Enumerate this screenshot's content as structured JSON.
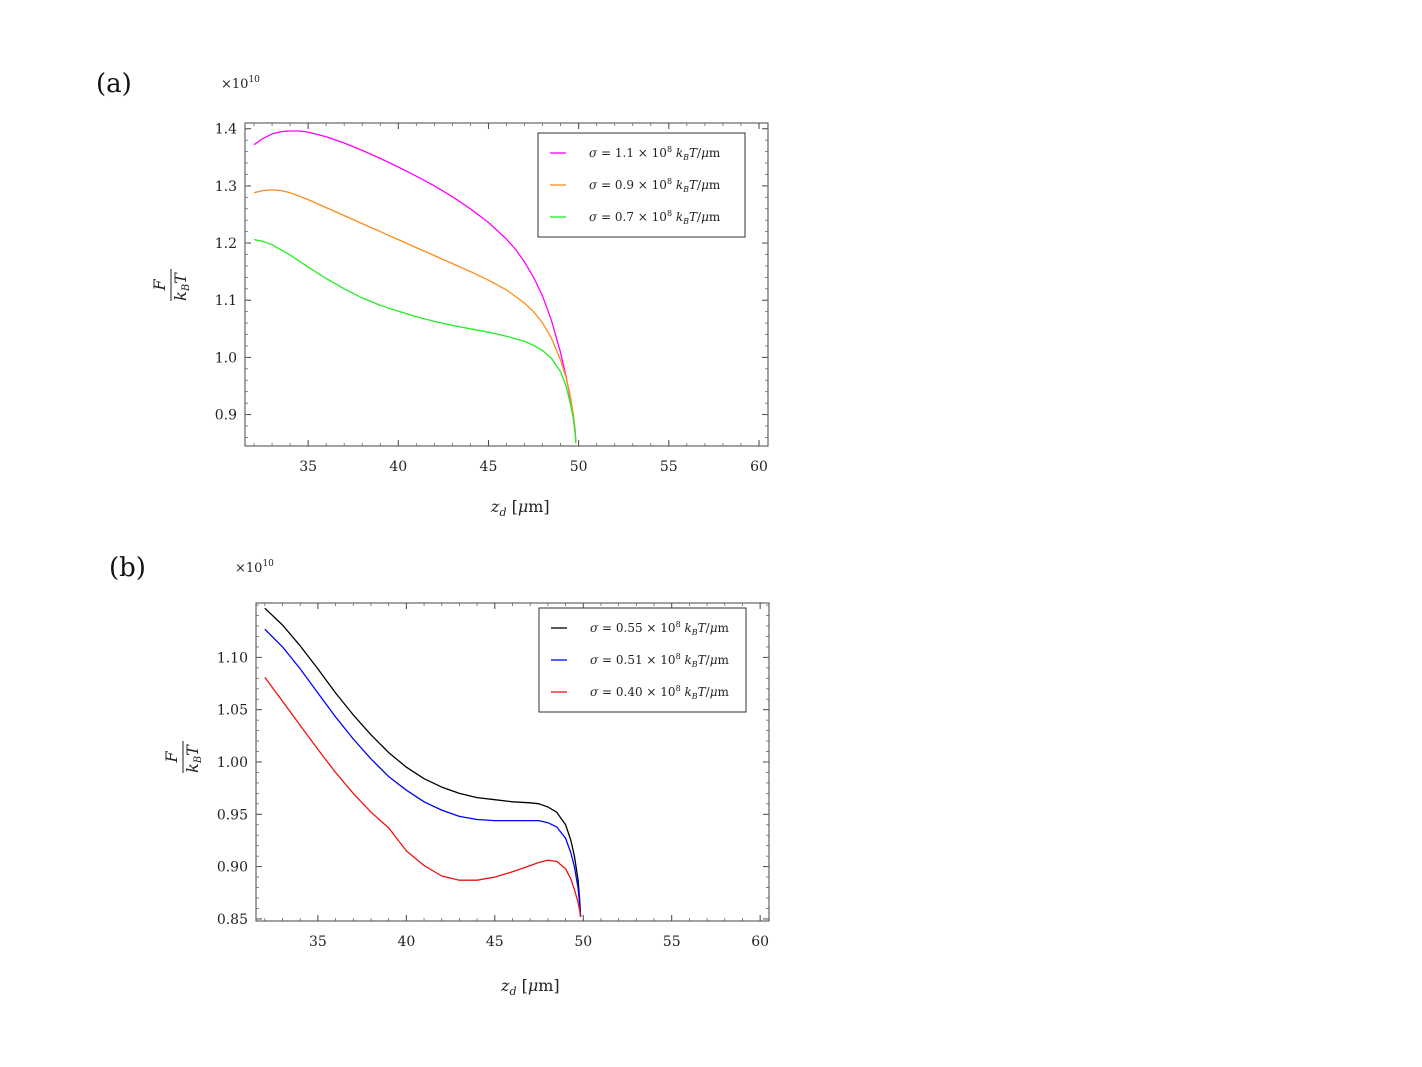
{
  "chart_data": [
    {
      "type": "line",
      "panel_label": "(a)",
      "multiplier": "×10",
      "multiplier_exp": "10",
      "xlabel": "z_d [μm]",
      "ylabel": "F / k_B T",
      "xlim": [
        31.5,
        60.5
      ],
      "ylim": [
        0.845,
        1.41
      ],
      "xticks": [
        "35",
        "40",
        "45",
        "50",
        "55",
        "60"
      ],
      "yticks": [
        "0.9",
        "1.0",
        "1.1",
        "1.2",
        "1.3",
        "1.4"
      ],
      "xtick_values": [
        35,
        40,
        45,
        50,
        55,
        60
      ],
      "ytick_values": [
        0.9,
        1.0,
        1.1,
        1.2,
        1.3,
        1.4
      ],
      "legend_position": "top-right",
      "series": [
        {
          "name": "σ = 1.1 × 10^8 k_B T/μm",
          "color": "#ff00ff",
          "x": [
            32.0,
            32.5,
            33.0,
            33.5,
            34.0,
            34.5,
            35.0,
            36.0,
            37.0,
            38.0,
            39.0,
            40.0,
            41.0,
            42.0,
            43.0,
            44.0,
            45.0,
            46.0,
            46.5,
            47.0,
            47.5,
            48.0,
            48.5,
            49.0,
            49.3,
            49.5,
            49.7,
            49.8,
            49.85
          ],
          "y": [
            1.372,
            1.383,
            1.391,
            1.395,
            1.396,
            1.396,
            1.394,
            1.386,
            1.375,
            1.362,
            1.348,
            1.333,
            1.317,
            1.3,
            1.281,
            1.26,
            1.236,
            1.207,
            1.189,
            1.167,
            1.14,
            1.107,
            1.064,
            1.008,
            0.967,
            0.935,
            0.895,
            0.87,
            0.85
          ]
        },
        {
          "name": "σ = 0.9 × 10^8 k_B T/μm",
          "color": "#ff8c1a",
          "x": [
            32.0,
            32.5,
            33.0,
            33.5,
            34.0,
            35.0,
            36.0,
            37.0,
            38.0,
            39.0,
            40.0,
            41.0,
            42.0,
            43.0,
            44.0,
            45.0,
            46.0,
            47.0,
            47.5,
            48.0,
            48.5,
            49.0,
            49.3,
            49.5,
            49.7,
            49.8,
            49.85
          ],
          "y": [
            1.288,
            1.292,
            1.293,
            1.292,
            1.288,
            1.276,
            1.262,
            1.248,
            1.234,
            1.22,
            1.206,
            1.192,
            1.178,
            1.164,
            1.15,
            1.135,
            1.118,
            1.095,
            1.08,
            1.06,
            1.033,
            0.995,
            0.965,
            0.938,
            0.902,
            0.876,
            0.85
          ]
        },
        {
          "name": "σ = 0.7 × 10^8 k_B T/μm",
          "color": "#22ee22",
          "x": [
            32.0,
            32.5,
            33.0,
            34.0,
            35.0,
            36.0,
            37.0,
            38.0,
            39.0,
            40.0,
            41.0,
            42.0,
            43.0,
            44.0,
            45.0,
            46.0,
            47.0,
            47.5,
            48.0,
            48.5,
            49.0,
            49.3,
            49.5,
            49.7,
            49.8,
            49.85
          ],
          "y": [
            1.206,
            1.203,
            1.197,
            1.179,
            1.158,
            1.138,
            1.12,
            1.104,
            1.091,
            1.081,
            1.071,
            1.063,
            1.056,
            1.05,
            1.044,
            1.037,
            1.028,
            1.021,
            1.012,
            0.998,
            0.975,
            0.95,
            0.925,
            0.895,
            0.872,
            0.85
          ]
        }
      ]
    },
    {
      "type": "line",
      "panel_label": "(b)",
      "multiplier": "×10",
      "multiplier_exp": "10",
      "xlabel": "z_d [μm]",
      "ylabel": "F / k_B T",
      "xlim": [
        31.5,
        60.5
      ],
      "ylim": [
        0.848,
        1.152
      ],
      "xticks": [
        "35",
        "40",
        "45",
        "50",
        "55",
        "60"
      ],
      "yticks": [
        "0.85",
        "0.90",
        "0.95",
        "1.00",
        "1.05",
        "1.10"
      ],
      "xtick_values": [
        35,
        40,
        45,
        50,
        55,
        60
      ],
      "ytick_values": [
        0.85,
        0.9,
        0.95,
        1.0,
        1.05,
        1.1
      ],
      "legend_position": "top-right",
      "series": [
        {
          "name": "σ = 0.55 × 10^8 k_B T/μm",
          "color": "#000000",
          "x": [
            32.0,
            33.0,
            34.0,
            35.0,
            36.0,
            37.0,
            38.0,
            39.0,
            40.0,
            41.0,
            42.0,
            43.0,
            44.0,
            45.0,
            46.0,
            47.0,
            47.5,
            48.0,
            48.5,
            49.0,
            49.3,
            49.5,
            49.7,
            49.8,
            49.85
          ],
          "y": [
            1.147,
            1.131,
            1.111,
            1.089,
            1.066,
            1.045,
            1.026,
            1.009,
            0.995,
            0.984,
            0.976,
            0.97,
            0.966,
            0.964,
            0.962,
            0.961,
            0.96,
            0.957,
            0.952,
            0.94,
            0.925,
            0.91,
            0.888,
            0.868,
            0.852
          ]
        },
        {
          "name": "σ = 0.51 × 10^8 k_B T/μm",
          "color": "#0000ff",
          "x": [
            32.0,
            33.0,
            34.0,
            35.0,
            36.0,
            37.0,
            38.0,
            39.0,
            40.0,
            41.0,
            42.0,
            43.0,
            44.0,
            45.0,
            46.0,
            47.0,
            47.5,
            48.0,
            48.5,
            49.0,
            49.3,
            49.5,
            49.7,
            49.8,
            49.85
          ],
          "y": [
            1.127,
            1.11,
            1.089,
            1.066,
            1.043,
            1.022,
            1.003,
            0.986,
            0.973,
            0.962,
            0.954,
            0.948,
            0.945,
            0.944,
            0.944,
            0.944,
            0.944,
            0.942,
            0.938,
            0.927,
            0.913,
            0.9,
            0.88,
            0.864,
            0.852
          ]
        },
        {
          "name": "σ = 0.40 × 10^8 k_B T/μm",
          "color": "#ee1111",
          "x": [
            32.0,
            33.0,
            34.0,
            35.0,
            36.0,
            37.0,
            38.0,
            39.0,
            40.0,
            41.0,
            42.0,
            43.0,
            44.0,
            45.0,
            46.0,
            47.0,
            47.5,
            48.0,
            48.5,
            49.0,
            49.3,
            49.5,
            49.7,
            49.8,
            49.85
          ],
          "y": [
            1.081,
            1.058,
            1.035,
            1.012,
            0.99,
            0.97,
            0.952,
            0.937,
            0.915,
            0.901,
            0.891,
            0.887,
            0.887,
            0.89,
            0.895,
            0.901,
            0.904,
            0.906,
            0.905,
            0.898,
            0.888,
            0.878,
            0.866,
            0.858,
            0.852
          ]
        }
      ]
    }
  ]
}
